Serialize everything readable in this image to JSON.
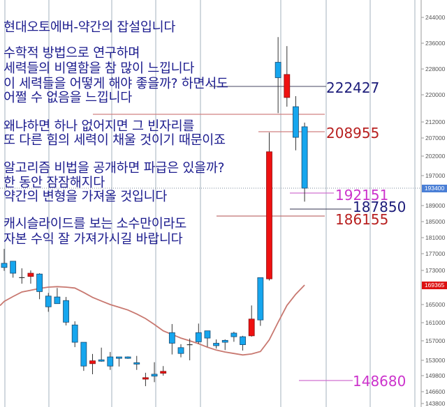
{
  "notes": [
    "현대오토에버-약간의 잡설입니다",
    "수학적 방법으로 연구하며",
    "세력들의 비열함을 참 많이 느낍니다",
    "이 세력들을 어떻게 해야 좋을까? 하면서도",
    "어쩔 수 없음을 느낍니다",
    "왜냐하면 하나 없어지면 그 빈자리를",
    "또 다른 힘의 세력이 채울 것이기 때문이죠",
    "알고리즘 비법을 공개하면 파급은 있을까?",
    "한 동안 잠잠해지다",
    "약간의 변형을 가져올 것입니다",
    "캐시슬라이드를 보는 소수만이라도",
    "자본 수익 잘 가져가시길 바랍니다"
  ],
  "colors": {
    "text": "#1c1c8e",
    "up": "#ee1111",
    "down": "#16a6ee",
    "ma": "#c87870",
    "grid": "#b8c4cc",
    "current_tag": "#4a7fd6",
    "ma_tag": "#dd1111",
    "level_navy": "#1c1c7a",
    "level_red": "#b82020",
    "level_magenta": "#cc33cc"
  },
  "chart_data": {
    "type": "candlestick",
    "y_axis": {
      "position": "right",
      "ticks": [
        "244000",
        "236000",
        "228000",
        "220000",
        "212000",
        "207000",
        "202000",
        "197000",
        "189000",
        "185000",
        "181000",
        "177000",
        "173000",
        "165000",
        "161000",
        "157000",
        "153000",
        "149800",
        "146600",
        "143800"
      ]
    },
    "current_price": "193400",
    "ma_last": "169365",
    "candles": [
      {
        "o": 174700,
        "h": 178200,
        "l": 172900,
        "c": 173700
      },
      {
        "o": 175200,
        "h": 175200,
        "l": 171200,
        "c": 172300
      },
      {
        "o": 171200,
        "h": 173500,
        "l": 169700,
        "c": 171200
      },
      {
        "o": 171500,
        "h": 173000,
        "l": 169700,
        "c": 172300
      },
      {
        "o": 172100,
        "h": 172300,
        "l": 166200,
        "c": 167900
      },
      {
        "o": 166900,
        "h": 167600,
        "l": 163400,
        "c": 164500
      },
      {
        "o": 166700,
        "h": 168700,
        "l": 165200,
        "c": 165200
      },
      {
        "o": 165900,
        "h": 166700,
        "l": 160400,
        "c": 161100
      },
      {
        "o": 160500,
        "h": 161300,
        "l": 155700,
        "c": 156700
      },
      {
        "o": 156700,
        "h": 156700,
        "l": 150800,
        "c": 151800
      },
      {
        "o": 152300,
        "h": 154300,
        "l": 150100,
        "c": 152900
      },
      {
        "o": 153100,
        "h": 155600,
        "l": 152700,
        "c": 152900
      },
      {
        "o": 153700,
        "h": 154700,
        "l": 151000,
        "c": 151800
      },
      {
        "o": 153700,
        "h": 153700,
        "l": 151700,
        "c": 153400
      },
      {
        "o": 153700,
        "h": 153800,
        "l": 153300,
        "c": 153400
      },
      {
        "o": 152500,
        "h": 153900,
        "l": 151000,
        "c": 152200
      },
      {
        "o": 149100,
        "h": 150400,
        "l": 147700,
        "c": 149400
      },
      {
        "o": 150100,
        "h": 152600,
        "l": 148500,
        "c": 149700
      },
      {
        "o": 150300,
        "h": 151800,
        "l": 149800,
        "c": 150700
      },
      {
        "o": 158800,
        "h": 160700,
        "l": 154200,
        "c": 156500
      },
      {
        "o": 155600,
        "h": 156300,
        "l": 153600,
        "c": 154400
      },
      {
        "o": 156200,
        "h": 157500,
        "l": 153000,
        "c": 156200
      },
      {
        "o": 158800,
        "h": 160800,
        "l": 156400,
        "c": 156800
      },
      {
        "o": 159200,
        "h": 159200,
        "l": 155800,
        "c": 157600
      },
      {
        "o": 156500,
        "h": 157300,
        "l": 155400,
        "c": 156000
      },
      {
        "o": 157100,
        "h": 157300,
        "l": 155100,
        "c": 156700
      },
      {
        "o": 158700,
        "h": 159000,
        "l": 156800,
        "c": 157900
      },
      {
        "o": 157900,
        "h": 158100,
        "l": 155000,
        "c": 156200
      },
      {
        "o": 158100,
        "h": 164800,
        "l": 157900,
        "c": 161800
      },
      {
        "o": 171200,
        "h": 171200,
        "l": 160300,
        "c": 161600
      },
      {
        "o": 170900,
        "h": 208700,
        "l": 170500,
        "c": 203200
      },
      {
        "o": 230100,
        "h": 237900,
        "l": 214600,
        "c": 225300
      },
      {
        "o": 219200,
        "h": 235100,
        "l": 216500,
        "c": 226300
      },
      {
        "o": 216500,
        "h": 219600,
        "l": 203600,
        "c": 207200
      },
      {
        "o": 210500,
        "h": 211800,
        "l": 190000,
        "c": 193400
      }
    ],
    "ma": [
      165700,
      166800,
      167800,
      168200,
      168600,
      168900,
      169000,
      168900,
      168700,
      167700,
      166600,
      165800,
      165000,
      164400,
      163800,
      162900,
      161900,
      160600,
      159200,
      158400,
      157600,
      157000,
      156400,
      155700,
      155100,
      154700,
      154400,
      154100,
      154300,
      154800,
      157200,
      161100,
      164800,
      167300,
      169365
    ],
    "levels": [
      {
        "label": "222427",
        "color": "navy"
      },
      {
        "label": "",
        "color": "red"
      },
      {
        "label": "208955",
        "color": "red"
      },
      {
        "label": "192151",
        "color": "magenta"
      },
      {
        "label": "187850",
        "color": "navy"
      },
      {
        "label": "186155",
        "color": "red"
      },
      {
        "label": "148680",
        "color": "magenta"
      }
    ]
  }
}
